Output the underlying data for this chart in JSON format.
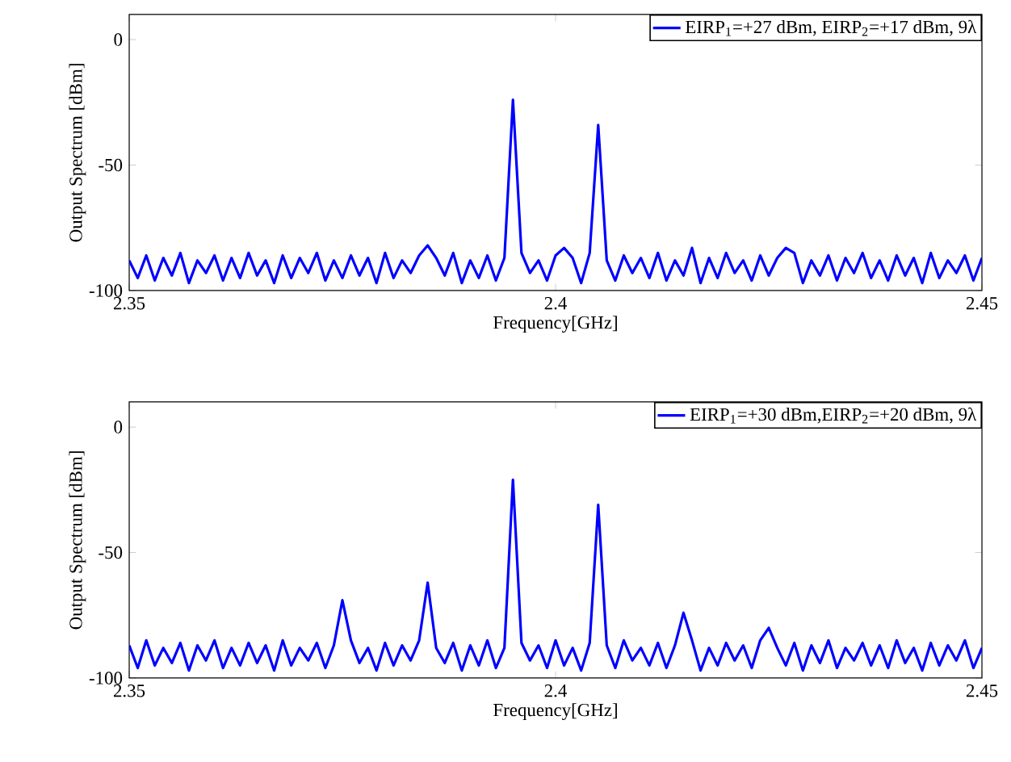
{
  "chart_data": [
    {
      "type": "line",
      "xlabel": "Frequency[GHz]",
      "ylabel": "Output Spectrum [dBm]",
      "xlim": [
        2.35,
        2.45
      ],
      "ylim": [
        -100,
        10
      ],
      "xticks": [
        2.35,
        2.4,
        2.45
      ],
      "yticks": [
        -100,
        -50,
        0
      ],
      "legend": "top right",
      "grid": false,
      "line_style": "solid",
      "marker": "none",
      "x": [
        2.35,
        2.351,
        2.352,
        2.353,
        2.354,
        2.355,
        2.356,
        2.357,
        2.358,
        2.359,
        2.36,
        2.361,
        2.362,
        2.363,
        2.364,
        2.365,
        2.366,
        2.367,
        2.368,
        2.369,
        2.37,
        2.371,
        2.372,
        2.373,
        2.374,
        2.375,
        2.376,
        2.377,
        2.378,
        2.379,
        2.38,
        2.381,
        2.382,
        2.383,
        2.384,
        2.385,
        2.386,
        2.387,
        2.388,
        2.389,
        2.39,
        2.391,
        2.392,
        2.393,
        2.394,
        2.395,
        2.396,
        2.397,
        2.398,
        2.399,
        2.4,
        2.401,
        2.402,
        2.403,
        2.404,
        2.405,
        2.406,
        2.407,
        2.408,
        2.409,
        2.41,
        2.411,
        2.412,
        2.413,
        2.414,
        2.415,
        2.416,
        2.417,
        2.418,
        2.419,
        2.42,
        2.421,
        2.422,
        2.423,
        2.424,
        2.425,
        2.426,
        2.427,
        2.428,
        2.429,
        2.43,
        2.431,
        2.432,
        2.433,
        2.434,
        2.435,
        2.436,
        2.437,
        2.438,
        2.439,
        2.44,
        2.441,
        2.442,
        2.443,
        2.444,
        2.445,
        2.446,
        2.447,
        2.448,
        2.449,
        2.45
      ],
      "series": [
        {
          "name": "EIRP$_{1}$=+27 dBm, EIRP$_{2}$=+17 dBm, 9λ",
          "color": "#0000ff",
          "values": [
            -88,
            -95,
            -86,
            -96,
            -87,
            -94,
            -85,
            -97,
            -88,
            -93,
            -86,
            -96,
            -87,
            -95,
            -85,
            -94,
            -88,
            -97,
            -86,
            -95,
            -87,
            -93,
            -85,
            -96,
            -88,
            -95,
            -86,
            -94,
            -87,
            -97,
            -85,
            -95,
            -88,
            -93,
            -86,
            -82,
            -87,
            -94,
            -85,
            -97,
            -88,
            -95,
            -86,
            -96,
            -87,
            -24,
            -85,
            -93,
            -88,
            -96,
            -86,
            -83,
            -87,
            -97,
            -85,
            -34,
            -88,
            -96,
            -86,
            -93,
            -87,
            -95,
            -85,
            -96,
            -88,
            -94,
            -83,
            -97,
            -87,
            -95,
            -85,
            -93,
            -88,
            -96,
            -86,
            -94,
            -87,
            -83,
            -85,
            -97,
            -88,
            -94,
            -86,
            -96,
            -87,
            -93,
            -85,
            -95,
            -88,
            -96,
            -86,
            -94,
            -87,
            -97,
            -85,
            -95,
            -88,
            -93,
            -86,
            -96,
            -87
          ]
        }
      ]
    },
    {
      "type": "line",
      "xlabel": "Frequency[GHz]",
      "ylabel": "Output Spectrum [dBm]",
      "xlim": [
        2.35,
        2.45
      ],
      "ylim": [
        -100,
        10
      ],
      "xticks": [
        2.35,
        2.4,
        2.45
      ],
      "yticks": [
        -100,
        -50,
        0
      ],
      "legend": "top right",
      "grid": false,
      "line_style": "solid",
      "marker": "none",
      "x": [
        2.35,
        2.351,
        2.352,
        2.353,
        2.354,
        2.355,
        2.356,
        2.357,
        2.358,
        2.359,
        2.36,
        2.361,
        2.362,
        2.363,
        2.364,
        2.365,
        2.366,
        2.367,
        2.368,
        2.369,
        2.37,
        2.371,
        2.372,
        2.373,
        2.374,
        2.375,
        2.376,
        2.377,
        2.378,
        2.379,
        2.38,
        2.381,
        2.382,
        2.383,
        2.384,
        2.385,
        2.386,
        2.387,
        2.388,
        2.389,
        2.39,
        2.391,
        2.392,
        2.393,
        2.394,
        2.395,
        2.396,
        2.397,
        2.398,
        2.399,
        2.4,
        2.401,
        2.402,
        2.403,
        2.404,
        2.405,
        2.406,
        2.407,
        2.408,
        2.409,
        2.41,
        2.411,
        2.412,
        2.413,
        2.414,
        2.415,
        2.416,
        2.417,
        2.418,
        2.419,
        2.42,
        2.421,
        2.422,
        2.423,
        2.424,
        2.425,
        2.426,
        2.427,
        2.428,
        2.429,
        2.43,
        2.431,
        2.432,
        2.433,
        2.434,
        2.435,
        2.436,
        2.437,
        2.438,
        2.439,
        2.44,
        2.441,
        2.442,
        2.443,
        2.444,
        2.445,
        2.446,
        2.447,
        2.448,
        2.449,
        2.45
      ],
      "series": [
        {
          "name": "EIRP$_{1}$=+30 dBm,EIRP$_{2}$=+20 dBm, 9λ",
          "color": "#0000ff",
          "values": [
            -87,
            -96,
            -85,
            -95,
            -88,
            -94,
            -86,
            -97,
            -87,
            -93,
            -85,
            -96,
            -88,
            -95,
            -86,
            -94,
            -87,
            -97,
            -85,
            -95,
            -88,
            -93,
            -86,
            -96,
            -87,
            -69,
            -85,
            -94,
            -88,
            -97,
            -86,
            -95,
            -87,
            -93,
            -85,
            -62,
            -88,
            -94,
            -86,
            -97,
            -87,
            -95,
            -85,
            -96,
            -88,
            -21,
            -86,
            -93,
            -87,
            -96,
            -85,
            -95,
            -88,
            -97,
            -86,
            -31,
            -87,
            -96,
            -85,
            -93,
            -88,
            -95,
            -86,
            -96,
            -87,
            -74,
            -85,
            -97,
            -88,
            -95,
            -86,
            -93,
            -87,
            -96,
            -85,
            -80,
            -88,
            -95,
            -86,
            -97,
            -87,
            -94,
            -85,
            -96,
            -88,
            -93,
            -86,
            -95,
            -87,
            -96,
            -85,
            -94,
            -88,
            -97,
            -86,
            -95,
            -87,
            -93,
            -85,
            -96,
            -88
          ]
        }
      ]
    }
  ]
}
